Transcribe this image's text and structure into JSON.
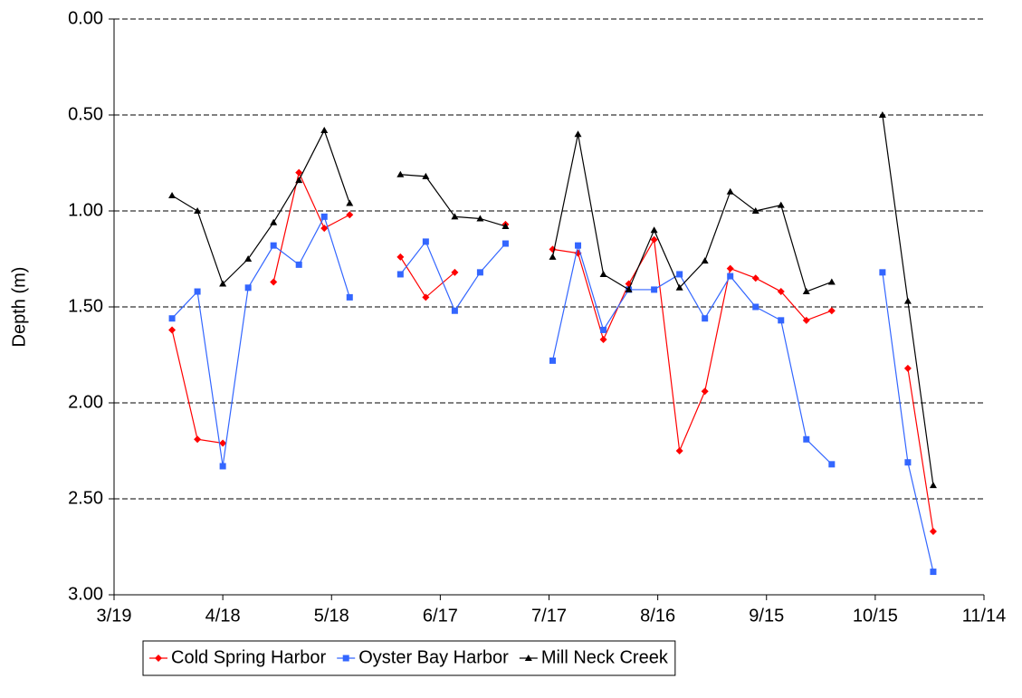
{
  "chart_data": {
    "type": "line",
    "y_label": "Depth (m)",
    "x": [
      "4/4",
      "4/11",
      "4/18",
      "4/25",
      "5/2",
      "5/9",
      "5/16",
      "5/23",
      "5/30",
      "6/6",
      "6/13",
      "6/21",
      "6/28",
      "7/5",
      "7/11",
      "7/18",
      "7/25",
      "8/1",
      "8/8",
      "8/15",
      "8/22",
      "8/29",
      "9/5",
      "9/12",
      "9/19",
      "9/26",
      "10/3",
      "10/10",
      "10/17",
      "10/24",
      "10/31"
    ],
    "series": [
      {
        "name": "Cold Spring Harbor",
        "color": "#ff0000",
        "marker": "diamond",
        "values": [
          1.62,
          2.19,
          2.21,
          null,
          1.37,
          0.8,
          1.09,
          1.02,
          null,
          1.24,
          1.45,
          1.32,
          null,
          1.07,
          null,
          1.2,
          1.22,
          1.67,
          1.38,
          1.15,
          2.25,
          1.94,
          1.3,
          1.35,
          1.42,
          1.57,
          1.52,
          null,
          null,
          1.82,
          2.67
        ]
      },
      {
        "name": "Oyster Bay Harbor",
        "color": "#3366ff",
        "marker": "square",
        "values": [
          1.56,
          1.42,
          2.33,
          1.4,
          1.18,
          1.28,
          1.03,
          1.45,
          null,
          1.33,
          1.16,
          1.52,
          1.32,
          1.17,
          null,
          1.78,
          1.18,
          1.62,
          1.41,
          1.41,
          1.33,
          1.56,
          1.34,
          1.5,
          1.57,
          2.19,
          2.32,
          null,
          1.32,
          2.31,
          2.88
        ]
      },
      {
        "name": "Mill Neck Creek",
        "color": "#000000",
        "marker": "triangle",
        "values": [
          0.92,
          1.0,
          1.38,
          1.25,
          1.06,
          0.84,
          0.58,
          0.96,
          null,
          0.81,
          0.82,
          1.03,
          1.04,
          1.08,
          null,
          1.24,
          0.6,
          1.33,
          1.41,
          1.1,
          1.4,
          1.26,
          0.9,
          1.0,
          0.97,
          1.42,
          1.37,
          null,
          0.5,
          1.47,
          2.43
        ]
      }
    ],
    "xlim": [
      "3/19",
      "11/14"
    ],
    "xticks": [
      "3/19",
      "4/18",
      "5/18",
      "6/17",
      "7/17",
      "8/16",
      "9/15",
      "10/15",
      "11/14"
    ],
    "ylim": [
      0,
      3
    ],
    "y_inverted": true,
    "yticks": [
      {
        "value": 0,
        "label": "0.00"
      },
      {
        "value": 0.5,
        "label": "0.50"
      },
      {
        "value": 1,
        "label": "1.00"
      },
      {
        "value": 1.5,
        "label": "1.50"
      },
      {
        "value": 2,
        "label": "2.00"
      },
      {
        "value": 2.5,
        "label": "2.50"
      },
      {
        "value": 3,
        "label": "3.00"
      }
    ],
    "grid": "dashed",
    "legend": "bottom"
  }
}
